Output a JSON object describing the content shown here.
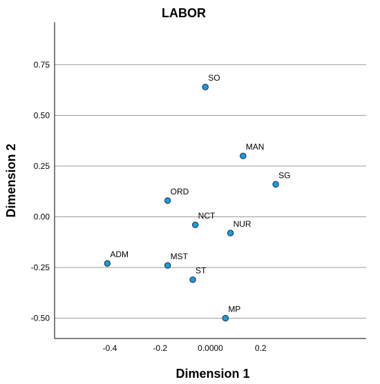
{
  "chart_data": {
    "type": "scatter",
    "title": "LABOR",
    "xlabel": "Dimension 1",
    "ylabel": "Dimension 2",
    "xlim": [
      -0.62,
      0.62
    ],
    "ylim": [
      -0.6,
      0.96
    ],
    "xticks": [
      {
        "value": -0.4,
        "label": "-0.4"
      },
      {
        "value": -0.2,
        "label": "-0.2"
      },
      {
        "value": 0.0,
        "label": "0.0000"
      },
      {
        "value": 0.2,
        "label": "0.2"
      }
    ],
    "yticks": [
      {
        "value": 0.75,
        "label": "0.75"
      },
      {
        "value": 0.5,
        "label": "0.50"
      },
      {
        "value": 0.25,
        "label": "0.25"
      },
      {
        "value": 0.0,
        "label": "0.00"
      },
      {
        "value": -0.25,
        "label": "-0.25"
      },
      {
        "value": -0.5,
        "label": "-0.50"
      }
    ],
    "grid": "horizontal",
    "point_color": "#1a9be0",
    "points": [
      {
        "label": "SO",
        "x": -0.02,
        "y": 0.64
      },
      {
        "label": "MAN",
        "x": 0.13,
        "y": 0.3
      },
      {
        "label": "SG",
        "x": 0.26,
        "y": 0.16
      },
      {
        "label": "ORD",
        "x": -0.17,
        "y": 0.08
      },
      {
        "label": "NCT",
        "x": -0.06,
        "y": -0.04
      },
      {
        "label": "NUR",
        "x": 0.08,
        "y": -0.08
      },
      {
        "label": "ADM",
        "x": -0.41,
        "y": -0.23
      },
      {
        "label": "MST",
        "x": -0.17,
        "y": -0.24
      },
      {
        "label": "ST",
        "x": -0.07,
        "y": -0.31
      },
      {
        "label": "MP",
        "x": 0.06,
        "y": -0.5
      }
    ]
  }
}
